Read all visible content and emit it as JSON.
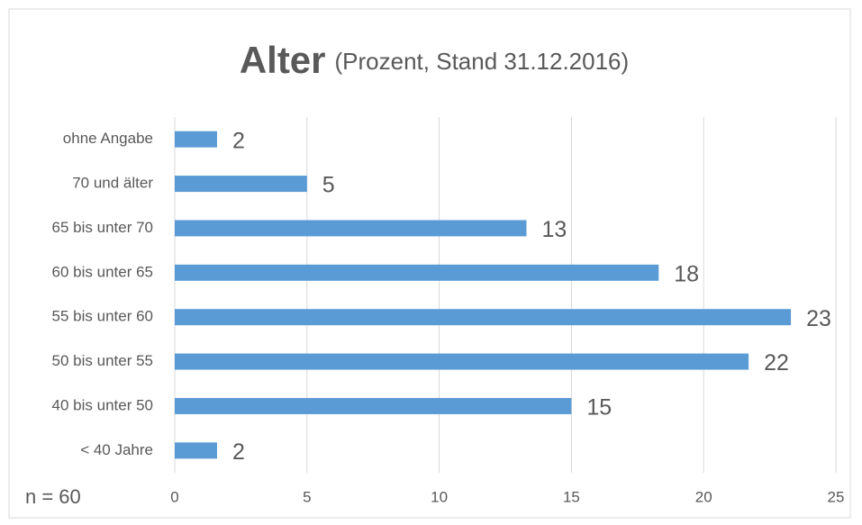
{
  "chart_data": {
    "type": "bar",
    "orientation": "horizontal",
    "title": "Alter",
    "subtitle": "(Prozent, Stand 31.12.2016)",
    "annotation": "n = 60",
    "categories": [
      "ohne Angabe",
      "70 und älter",
      "65 bis unter 70",
      "60 bis unter 65",
      "55 bis unter 60",
      "50 bis unter 55",
      "40 bis unter 50",
      "< 40 Jahre"
    ],
    "values": [
      1.6,
      5,
      13.3,
      18.3,
      23.3,
      21.7,
      15,
      1.6
    ],
    "value_labels": [
      "2",
      "5",
      "13",
      "18",
      "23",
      "22",
      "15",
      "2"
    ],
    "color": "#5b9bd5",
    "xlim": [
      0,
      25
    ],
    "xticks": [
      0,
      5,
      10,
      15,
      20,
      25
    ],
    "grid": true
  }
}
